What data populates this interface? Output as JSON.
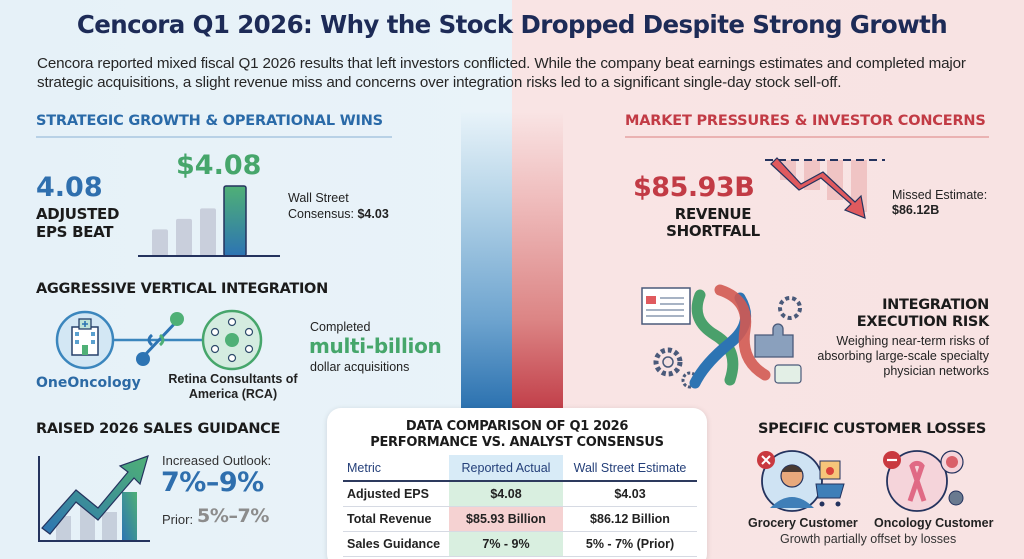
{
  "header": {
    "title": "Cencora Q1 2026: Why the Stock Dropped Despite Strong Growth",
    "subtitle": "Cencora reported mixed fiscal Q1 2026 results that left investors conflicted. While the company beat earnings estimates and completed major strategic acquisitions, a slight revenue miss and concerns over integration risks led to a significant single-day stock sell-off."
  },
  "colors": {
    "navy": "#1d2b57",
    "blue": "#2f6fae",
    "green": "#46a66b",
    "red": "#c23b45",
    "gray": "#8c8c8c"
  },
  "left": {
    "heading": "STRATEGIC GROWTH & OPERATIONAL WINS",
    "eps": {
      "big_value": "4.08",
      "label": "ADJUSTED EPS BEAT",
      "chart_value": "$4.08",
      "consensus_label": "Wall Street Consensus:",
      "consensus_value": "$4.03",
      "bars": [
        0.38,
        0.53,
        0.68,
        1.0
      ]
    },
    "integration": {
      "heading": "AGGRESSIVE VERTICAL INTEGRATION",
      "left_entity": "OneOncology",
      "right_entity": "Retina Consultants of America (RCA)",
      "acq_top": "Completed",
      "acq_big": "multi-billion",
      "acq_bottom": "dollar acquisitions",
      "left_icon": "hospital-icon",
      "right_icon": "network-icon",
      "link_icon": "chain-link-icon"
    },
    "guidance": {
      "heading": "RAISED 2026 SALES GUIDANCE",
      "label": "Increased Outlook:",
      "value": "7%–9%",
      "prior_label": "Prior:",
      "prior_value": "5%–7%",
      "icon": "trend-up-arrow-icon"
    }
  },
  "right": {
    "heading": "MARKET PRESSURES & INVESTOR CONCERNS",
    "revenue": {
      "big_value": "$85.93B",
      "label": "REVENUE SHORTFALL",
      "missed_label": "Missed Estimate:",
      "missed_value": "$86.12B",
      "icon": "trend-down-arrow-icon"
    },
    "risk": {
      "heading": "INTEGRATION EXECUTION RISK",
      "description": "Weighing near-term risks of absorbing large-scale specialty physician networks",
      "icon": "tangled-chain-gears-icon"
    },
    "customers": {
      "heading": "SPECIFIC CUSTOMER LOSSES",
      "items": [
        {
          "label": "Grocery Customer",
          "icon": "grocery-customer-icon",
          "badge": "x-badge-icon"
        },
        {
          "label": "Oncology Customer",
          "icon": "oncology-ribbon-icon",
          "badge": "minus-badge-icon"
        }
      ],
      "note": "Growth partially offset by losses"
    }
  },
  "table": {
    "title_line1": "DATA COMPARISON OF Q1 2026",
    "title_line2": "PERFORMANCE VS. ANALYST CONSENSUS",
    "columns": [
      "Metric",
      "Reported Actual",
      "Wall Street Estimate"
    ],
    "rows": [
      {
        "metric": "Adjusted EPS",
        "actual": "$4.08",
        "estimate": "$4.03",
        "status": "beat"
      },
      {
        "metric": "Total Revenue",
        "actual": "$85.93 Billion",
        "estimate": "$86.12 Billion",
        "status": "miss"
      },
      {
        "metric": "Sales Guidance",
        "actual": "7% - 9%",
        "estimate": "5% - 7% (Prior)",
        "status": "beat"
      }
    ]
  }
}
